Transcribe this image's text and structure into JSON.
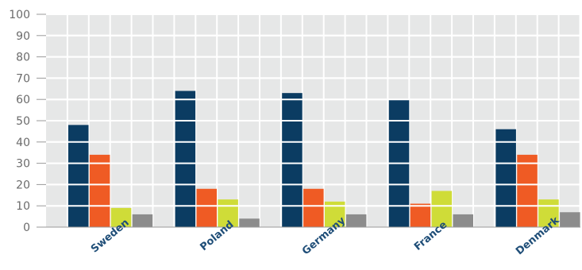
{
  "chart_data": {
    "type": "bar",
    "title": "",
    "xlabel": "",
    "ylabel": "",
    "ylim": [
      0,
      100
    ],
    "yticks": [
      0,
      10,
      20,
      30,
      40,
      50,
      60,
      70,
      80,
      90,
      100
    ],
    "grid": true,
    "categories": [
      "Sweden",
      "Poland",
      "Germany",
      "France",
      "Denmark"
    ],
    "series": [
      {
        "values": [
          48,
          64,
          63,
          60,
          46
        ],
        "color": "#0b3c62"
      },
      {
        "values": [
          34,
          18,
          18,
          11,
          34
        ],
        "color": "#ef5b24"
      },
      {
        "values": [
          9,
          13,
          12,
          17,
          13
        ],
        "color": "#cfdc38"
      },
      {
        "values": [
          6,
          4,
          6,
          6,
          7
        ],
        "color": "#8c8c8c"
      }
    ],
    "colors": {
      "plot_background": "#e6e7e7",
      "gridline": "#ffffff",
      "axis_text": "#6b6b6b",
      "category_text": "#1f4e78"
    }
  }
}
